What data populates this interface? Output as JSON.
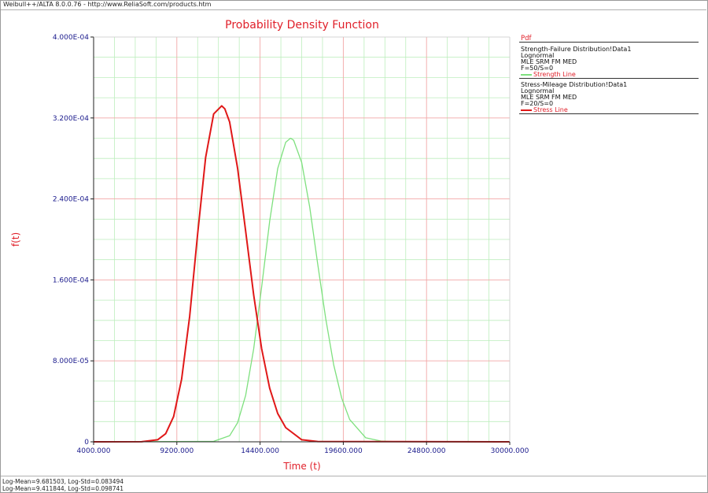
{
  "window": {
    "title_bar": "Weibull++/ALTA 8.0.0.76 - http://www.ReliaSoft.com/products.htm"
  },
  "footer": {
    "line1": "Log-Mean=9.681503, Log-Std=0.083494",
    "line2": "Log-Mean=9.411844, Log-Std=0.098741"
  },
  "legend": {
    "title": "Pdf",
    "groups": [
      {
        "name": "Strength-Failure Distribution!Data1",
        "lines": [
          "Lognormal",
          "MLE SRM FM MED",
          "F=50/S=0"
        ],
        "series_label": "Strength Line",
        "color": "#7ee07e"
      },
      {
        "name": "Stress-Mileage Distribution!Data1",
        "lines": [
          "Lognormal",
          "MLE SRM FM MED",
          "F=20/S=0"
        ],
        "series_label": "Stress Line",
        "color": "#e01818"
      }
    ]
  },
  "colors": {
    "title": "#e0202a",
    "axis_label": "#e0202a",
    "tick_label": "#1a1a8c",
    "grid_major": "#f2a8a8",
    "grid_minor": "#bdeebd",
    "strength_line": "#7ee07e",
    "stress_line": "#e01818"
  },
  "chart_data": {
    "type": "line",
    "title": "Probability Density Function",
    "xlabel": "Time (t)",
    "ylabel": "f(t)",
    "xlim": [
      4000,
      30000
    ],
    "ylim": [
      0,
      0.0004
    ],
    "x_ticks": [
      "4000.000",
      "9200.000",
      "14400.000",
      "19600.000",
      "24800.000",
      "30000.000"
    ],
    "y_ticks": [
      "0",
      "8.000E-05",
      "1.600E-04",
      "2.400E-04",
      "3.200E-04",
      "4.000E-04"
    ],
    "grid": true,
    "legend_position": "right",
    "series": [
      {
        "name": "Strength Line",
        "color": "#7ee07e",
        "x": [
          11500,
          12500,
          13000,
          13500,
          14000,
          14500,
          15000,
          15500,
          16000,
          16300,
          16500,
          17000,
          17500,
          18000,
          18500,
          19000,
          19500,
          20000,
          21000,
          22000,
          23000
        ],
        "y": [
          5e-07,
          6e-06,
          1.9e-05,
          4.6e-05,
          9.2e-05,
          0.000153,
          0.000218,
          0.00027,
          0.000296,
          0.0003,
          0.000298,
          0.000276,
          0.000232,
          0.000176,
          0.000122,
          7.6e-05,
          4.3e-05,
          2.2e-05,
          4e-06,
          6e-07,
          1e-07
        ]
      },
      {
        "name": "Stress Line",
        "color": "#e01818",
        "x": [
          7000,
          8000,
          8500,
          9000,
          9500,
          10000,
          10500,
          11000,
          11500,
          12000,
          12200,
          12500,
          13000,
          13500,
          14000,
          14500,
          15000,
          15500,
          16000,
          17000,
          18000
        ],
        "y": [
          1e-07,
          2e-06,
          8e-06,
          2.5e-05,
          6.2e-05,
          0.000124,
          0.000206,
          0.000281,
          0.000324,
          0.000332,
          0.000329,
          0.000316,
          0.00027,
          0.000208,
          0.000145,
          9.2e-05,
          5.3e-05,
          2.8e-05,
          1.4e-05,
          2e-06,
          3e-07
        ]
      }
    ]
  }
}
